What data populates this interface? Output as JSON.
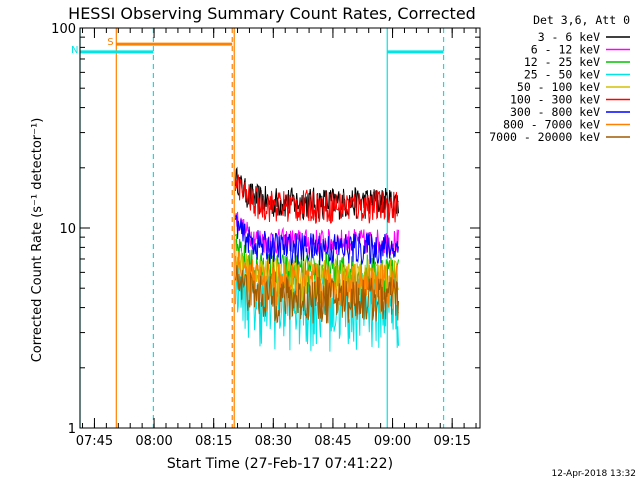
{
  "chart_data": {
    "type": "line",
    "title": "HESSI Observing Summary Count Rates, Corrected",
    "xlabel": "Start Time (27-Feb-17 07:41:22)",
    "ylabel": "Corrected Count Rate (s⁻¹ detector⁻¹)",
    "yscale": "log",
    "ylim": [
      1,
      100
    ],
    "xlim": [
      "07:41:22",
      "09:22:00"
    ],
    "x_ticks": [
      "07:45",
      "08:00",
      "08:15",
      "08:30",
      "08:45",
      "09:00",
      "09:15"
    ],
    "y_ticks": [
      "1",
      "10",
      "100"
    ],
    "legend_title": "Det 3,6, Att 0",
    "legend_position": "right",
    "footer_date": "12-Apr-2018 13:32",
    "series": [
      {
        "name": "3 - 6 keV",
        "color": "#000000",
        "level": 13.5,
        "spread": 2.5
      },
      {
        "name": "6 - 12 keV",
        "color": "#ff00ff",
        "level": 8.6,
        "spread": 1.3
      },
      {
        "name": "12 - 25 keV",
        "color": "#00c000",
        "level": 6.0,
        "spread": 1.5
      },
      {
        "name": "25 - 50 keV",
        "color": "#00e5e5",
        "level": 4.2,
        "spread": 1.8
      },
      {
        "name": "50 - 100 keV",
        "color": "#d4c000",
        "level": 5.5,
        "spread": 1.5
      },
      {
        "name": "100 - 300 keV",
        "color": "#ff0000",
        "level": 13.0,
        "spread": 2.5
      },
      {
        "name": "300 - 800 keV",
        "color": "#0000ff",
        "level": 8.0,
        "spread": 1.5
      },
      {
        "name": "800 - 7000 keV",
        "color": "#ff8000",
        "level": 5.2,
        "spread": 1.5
      },
      {
        "name": "7000 - 20000 keV",
        "color": "#a05a00",
        "level": 4.5,
        "spread": 1.2
      }
    ],
    "data_interval": [
      "08:20:30",
      "09:01:30"
    ],
    "flags": [
      {
        "label": "S",
        "color": "#ff8000",
        "start": "07:50:30",
        "end": "08:19:40",
        "level": 83
      },
      {
        "label": "N",
        "color": "#00e5e5",
        "start": "07:41:22",
        "end": "07:59:50",
        "level": 76
      },
      {
        "label": "",
        "color": "#00e5e5",
        "start": "08:58:40",
        "end": "09:12:50",
        "level": 76
      }
    ],
    "vlines": [
      {
        "time": "07:41:22",
        "color": "#00e5e5",
        "style": "solid"
      },
      {
        "time": "07:50:30",
        "color": "#ff8000",
        "style": "solid"
      },
      {
        "time": "07:59:50",
        "color": "#00e5e5",
        "style": "dashed"
      },
      {
        "time": "08:19:40",
        "color": "#ff8000",
        "style": "dashed"
      },
      {
        "time": "08:20:10",
        "color": "#ff8000",
        "style": "solid"
      },
      {
        "time": "08:58:40",
        "color": "#00e5e5",
        "style": "solid"
      },
      {
        "time": "09:12:50",
        "color": "#00e5e5",
        "style": "dashed"
      }
    ]
  }
}
